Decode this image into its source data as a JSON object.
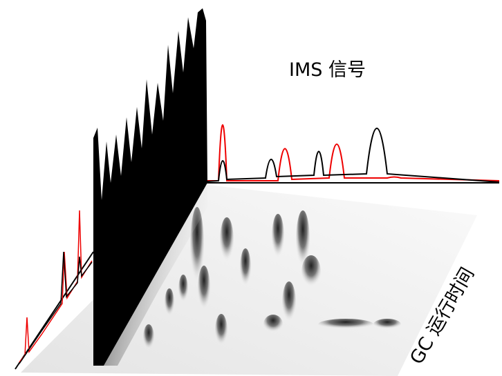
{
  "labels": {
    "ims_signal": "IMS 信号",
    "gc_runtime": "GC 运行时间"
  }
}
